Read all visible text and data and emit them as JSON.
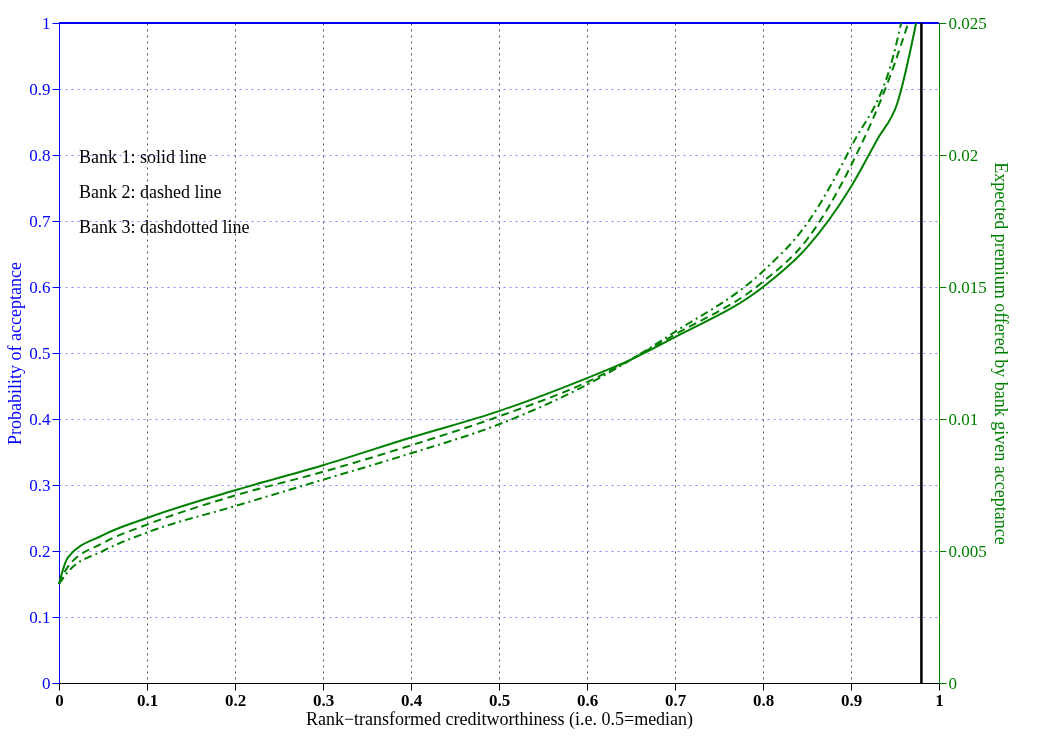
{
  "chart_data": {
    "type": "line",
    "xlabel": "Rank−transformed creditworthiness (i.e. 0.5=median)",
    "ylabel": "Probability of acceptance",
    "y2label": "Expected premium offered by bank given acceptance",
    "xlim": [
      0,
      1
    ],
    "xticks": [
      0,
      0.1,
      0.2,
      0.3,
      0.4,
      0.5,
      0.6,
      0.7,
      0.8,
      0.9,
      1
    ],
    "ylim": [
      0,
      1
    ],
    "yticks": [
      0,
      0.1,
      0.2,
      0.3,
      0.4,
      0.5,
      0.6,
      0.7,
      0.8,
      0.9,
      1
    ],
    "y2lim": [
      0,
      0.025
    ],
    "y2ticks": [
      0,
      0.005,
      0.01,
      0.015,
      0.02,
      0.025
    ],
    "grid": true,
    "annotations": [
      "Bank 1: solid line",
      "Bank 2: dashed line",
      "Bank 3: dashdotted line"
    ],
    "ref_lines": [
      {
        "axis": "x",
        "value": 0.98,
        "color": "#000000"
      }
    ],
    "series": [
      {
        "color": "#0000ff",
        "line_style": "solid",
        "x": [
          0,
          1
        ],
        "values": [
          1,
          1
        ]
      },
      {
        "color": "#008000",
        "line_style": "solid",
        "axis": "y2",
        "x": [
          0,
          0.01,
          0.05,
          0.1,
          0.2,
          0.3,
          0.4,
          0.5,
          0.6,
          0.65,
          0.7,
          0.8,
          0.85,
          0.9,
          0.93,
          0.953,
          0.974
        ],
        "values": [
          0.00375,
          0.00475,
          0.0056,
          0.00625,
          0.0073,
          0.00825,
          0.0093,
          0.0103,
          0.01155,
          0.01225,
          0.0131,
          0.015,
          0.0165,
          0.0188,
          0.0206,
          0.022,
          0.025
        ]
      },
      {
        "color": "#008000",
        "line_style": "dashed",
        "axis": "y2",
        "x": [
          0,
          0.01,
          0.05,
          0.1,
          0.2,
          0.3,
          0.4,
          0.5,
          0.6,
          0.7,
          0.8,
          0.85,
          0.9,
          0.95,
          0.965
        ],
        "values": [
          0.00375,
          0.0044,
          0.0053,
          0.006,
          0.0071,
          0.008,
          0.009,
          0.0101,
          0.0114,
          0.0132,
          0.0152,
          0.0168,
          0.0196,
          0.0235,
          0.025
        ]
      },
      {
        "color": "#008000",
        "line_style": "dashdot",
        "axis": "y2",
        "x": [
          0,
          0.01,
          0.05,
          0.1,
          0.2,
          0.3,
          0.4,
          0.5,
          0.6,
          0.7,
          0.8,
          0.85,
          0.9,
          0.95,
          0.957
        ],
        "values": [
          0.00375,
          0.0042,
          0.005,
          0.0057,
          0.0067,
          0.0077,
          0.0087,
          0.0098,
          0.0113,
          0.0133,
          0.0156,
          0.0174,
          0.0203,
          0.024,
          0.025
        ]
      }
    ]
  }
}
